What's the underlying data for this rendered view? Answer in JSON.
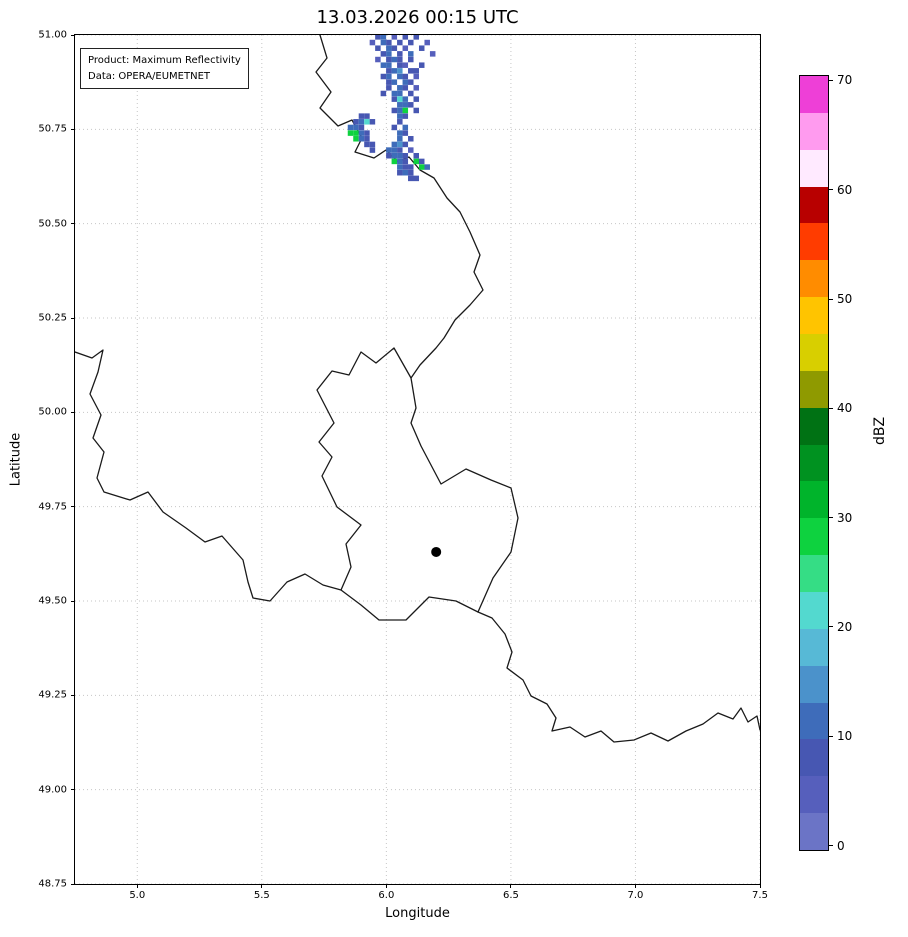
{
  "title": "13.03.2026 00:15 UTC",
  "legend": {
    "line1": "Product: Maximum Reflectivity",
    "line2": "Data: OPERA/EUMETNET"
  },
  "axes": {
    "xlabel": "Longitude",
    "ylabel": "Latitude",
    "xlim": [
      4.75,
      7.5
    ],
    "ylim": [
      48.75,
      51.0
    ],
    "x_ticks": [
      5.0,
      5.5,
      6.0,
      6.5,
      7.0,
      7.5
    ],
    "x_tick_labels": [
      "5.0",
      "5.5",
      "6.0",
      "6.5",
      "7.0",
      "7.5"
    ],
    "y_ticks": [
      51.0,
      50.75,
      50.5,
      50.25,
      50.0,
      49.75,
      49.5,
      49.25,
      49.0,
      48.75
    ],
    "y_tick_labels": [
      "51.00",
      "50.75",
      "50.50",
      "50.25",
      "50.00",
      "49.75",
      "49.50",
      "49.25",
      "49.00",
      "48.75"
    ],
    "grid": true
  },
  "colorbar": {
    "label": "dBZ",
    "ticks": [
      0,
      10,
      20,
      30,
      40,
      50,
      60,
      70
    ],
    "range": [
      -0.5,
      70.5
    ],
    "colors_bottom_to_top": [
      "#6b74c6",
      "#565fbc",
      "#4757b2",
      "#3e6cba",
      "#4b92cb",
      "#57b9d6",
      "#53d9cf",
      "#35dd85",
      "#0ed23f",
      "#00b42b",
      "#009220",
      "#007214",
      "#8f9a00",
      "#d8cf00",
      "#ffc400",
      "#ff8c00",
      "#ff3c00",
      "#b80000",
      "#ffeaff",
      "#ff9bef",
      "#ee3fd7"
    ]
  },
  "chart_data": {
    "type": "heatmap",
    "title": "13.03.2026 00:15 UTC",
    "units": "dBZ",
    "xlabel": "Longitude",
    "ylabel": "Latitude",
    "xlim": [
      4.75,
      7.5
    ],
    "ylim": [
      48.75,
      51.0
    ],
    "marker": {
      "name": "radar-site",
      "lon": 6.2,
      "lat": 49.63
    },
    "cell_size_deg": {
      "lon": 0.022,
      "lat": 0.0146
    },
    "cells_lon_lat_dbz": [
      [
        5.966,
        50.995,
        8
      ],
      [
        5.988,
        50.995,
        10
      ],
      [
        6.032,
        50.995,
        6
      ],
      [
        6.076,
        50.995,
        9
      ],
      [
        6.12,
        50.995,
        7
      ],
      [
        5.944,
        50.98,
        5
      ],
      [
        5.988,
        50.98,
        11
      ],
      [
        6.01,
        50.98,
        9
      ],
      [
        6.054,
        50.98,
        7
      ],
      [
        6.098,
        50.98,
        8
      ],
      [
        6.164,
        50.98,
        5
      ],
      [
        5.966,
        50.965,
        9
      ],
      [
        6.01,
        50.965,
        12
      ],
      [
        6.032,
        50.965,
        8
      ],
      [
        6.076,
        50.965,
        6
      ],
      [
        6.142,
        50.965,
        9
      ],
      [
        5.988,
        50.95,
        7
      ],
      [
        6.01,
        50.95,
        10
      ],
      [
        6.054,
        50.95,
        8
      ],
      [
        6.098,
        50.95,
        11
      ],
      [
        6.186,
        50.95,
        5
      ],
      [
        5.966,
        50.935,
        6
      ],
      [
        6.01,
        50.935,
        9
      ],
      [
        6.032,
        50.935,
        12
      ],
      [
        6.054,
        50.935,
        7
      ],
      [
        6.098,
        50.935,
        8
      ],
      [
        5.988,
        50.92,
        10
      ],
      [
        6.01,
        50.92,
        13
      ],
      [
        6.054,
        50.92,
        9
      ],
      [
        6.076,
        50.92,
        6
      ],
      [
        6.142,
        50.92,
        8
      ],
      [
        6.01,
        50.905,
        8
      ],
      [
        6.032,
        50.905,
        11
      ],
      [
        6.054,
        50.905,
        14
      ],
      [
        6.098,
        50.905,
        9
      ],
      [
        6.12,
        50.905,
        7
      ],
      [
        5.988,
        50.89,
        7
      ],
      [
        6.01,
        50.89,
        10
      ],
      [
        6.054,
        50.89,
        12
      ],
      [
        6.076,
        50.89,
        8
      ],
      [
        6.12,
        50.89,
        6
      ],
      [
        6.01,
        50.875,
        9
      ],
      [
        6.032,
        50.875,
        13
      ],
      [
        6.076,
        50.875,
        10
      ],
      [
        6.098,
        50.875,
        7
      ],
      [
        6.01,
        50.86,
        8
      ],
      [
        6.054,
        50.86,
        11
      ],
      [
        6.076,
        50.86,
        9
      ],
      [
        6.12,
        50.86,
        6
      ],
      [
        5.988,
        50.845,
        7
      ],
      [
        6.032,
        50.845,
        10
      ],
      [
        6.054,
        50.845,
        12
      ],
      [
        6.098,
        50.845,
        8
      ],
      [
        6.032,
        50.83,
        9
      ],
      [
        6.054,
        50.83,
        20
      ],
      [
        6.076,
        50.83,
        11
      ],
      [
        6.12,
        50.83,
        7
      ],
      [
        6.054,
        50.815,
        10
      ],
      [
        6.076,
        50.815,
        13
      ],
      [
        6.098,
        50.815,
        8
      ],
      [
        6.032,
        50.8,
        8
      ],
      [
        6.054,
        50.8,
        11
      ],
      [
        6.076,
        50.8,
        27
      ],
      [
        6.12,
        50.8,
        9
      ],
      [
        5.9,
        50.785,
        7
      ],
      [
        5.922,
        50.785,
        9
      ],
      [
        6.054,
        50.785,
        10
      ],
      [
        6.076,
        50.785,
        8
      ],
      [
        5.878,
        50.77,
        8
      ],
      [
        5.9,
        50.77,
        11
      ],
      [
        5.922,
        50.77,
        20
      ],
      [
        5.944,
        50.77,
        9
      ],
      [
        6.054,
        50.77,
        7
      ],
      [
        5.856,
        50.755,
        10
      ],
      [
        5.878,
        50.755,
        13
      ],
      [
        5.9,
        50.755,
        9
      ],
      [
        6.032,
        50.755,
        8
      ],
      [
        6.076,
        50.755,
        12
      ],
      [
        5.856,
        50.74,
        28
      ],
      [
        5.878,
        50.74,
        29
      ],
      [
        5.9,
        50.74,
        12
      ],
      [
        5.922,
        50.74,
        9
      ],
      [
        6.054,
        50.74,
        10
      ],
      [
        6.076,
        50.74,
        8
      ],
      [
        5.878,
        50.725,
        27
      ],
      [
        5.9,
        50.725,
        10
      ],
      [
        5.922,
        50.725,
        8
      ],
      [
        6.054,
        50.725,
        11
      ],
      [
        6.098,
        50.725,
        9
      ],
      [
        5.922,
        50.71,
        7
      ],
      [
        5.944,
        50.71,
        9
      ],
      [
        6.032,
        50.71,
        11
      ],
      [
        6.054,
        50.71,
        14
      ],
      [
        6.076,
        50.71,
        8
      ],
      [
        5.944,
        50.695,
        8
      ],
      [
        6.01,
        50.695,
        10
      ],
      [
        6.032,
        50.695,
        12
      ],
      [
        6.054,
        50.695,
        9
      ],
      [
        6.098,
        50.695,
        6
      ],
      [
        6.01,
        50.68,
        9
      ],
      [
        6.032,
        50.68,
        13
      ],
      [
        6.054,
        50.68,
        10
      ],
      [
        6.076,
        50.68,
        7
      ],
      [
        6.12,
        50.68,
        8
      ],
      [
        6.032,
        50.665,
        28
      ],
      [
        6.054,
        50.665,
        11
      ],
      [
        6.076,
        50.665,
        9
      ],
      [
        6.12,
        50.665,
        27
      ],
      [
        6.142,
        50.665,
        7
      ],
      [
        6.054,
        50.65,
        12
      ],
      [
        6.076,
        50.65,
        9
      ],
      [
        6.098,
        50.65,
        8
      ],
      [
        6.142,
        50.65,
        29
      ],
      [
        6.164,
        50.65,
        10
      ],
      [
        6.054,
        50.635,
        8
      ],
      [
        6.076,
        50.635,
        10
      ],
      [
        6.098,
        50.635,
        7
      ],
      [
        6.098,
        50.62,
        9
      ],
      [
        6.12,
        50.62,
        8
      ]
    ]
  }
}
